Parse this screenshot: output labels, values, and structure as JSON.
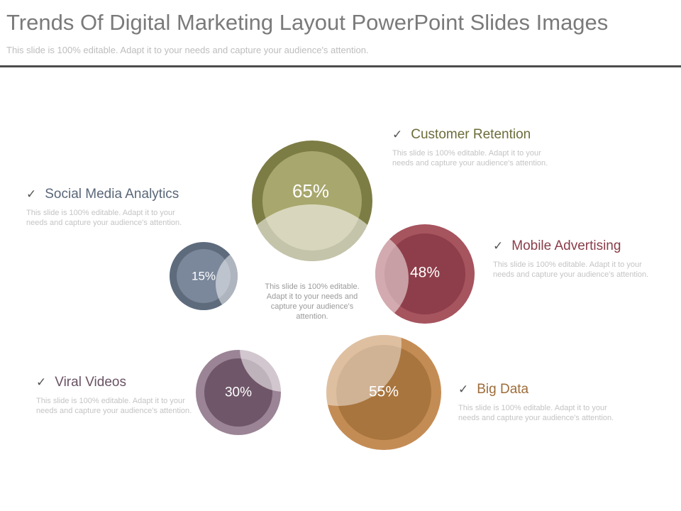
{
  "slide": {
    "title": "Trends Of Digital Marketing Layout PowerPoint Slides Images",
    "subtitle": "This slide is 100% editable. Adapt it to your needs and capture your audience's attention."
  },
  "center_text": "This slide is 100% editable. Adapt it to your needs and capture your audience's attention.",
  "items": [
    {
      "label": "Customer Retention",
      "percent": "65%",
      "value": 65,
      "description": "This slide is 100% editable. Adapt it to your needs and capture your audience's attention.",
      "color": "#7c7c45"
    },
    {
      "label": "Social Media Analytics",
      "percent": "15%",
      "value": 15,
      "description": "This slide is 100% editable. Adapt it to your needs and capture your audience's attention.",
      "color": "#5d6b7d"
    },
    {
      "label": "Mobile Advertising",
      "percent": "48%",
      "value": 48,
      "description": "This slide is 100% editable. Adapt it to your needs and capture your audience's attention.",
      "color": "#8e3e4a"
    },
    {
      "label": "Viral Videos",
      "percent": "30%",
      "value": 30,
      "description": "This slide is 100% editable. Adapt it to your needs and capture your audience's attention.",
      "color": "#6f5669"
    },
    {
      "label": "Big Data",
      "percent": "55%",
      "value": 55,
      "description": "This slide is 100% editable. Adapt it to your needs and capture your audience's attention.",
      "color": "#a9753e"
    }
  ]
}
